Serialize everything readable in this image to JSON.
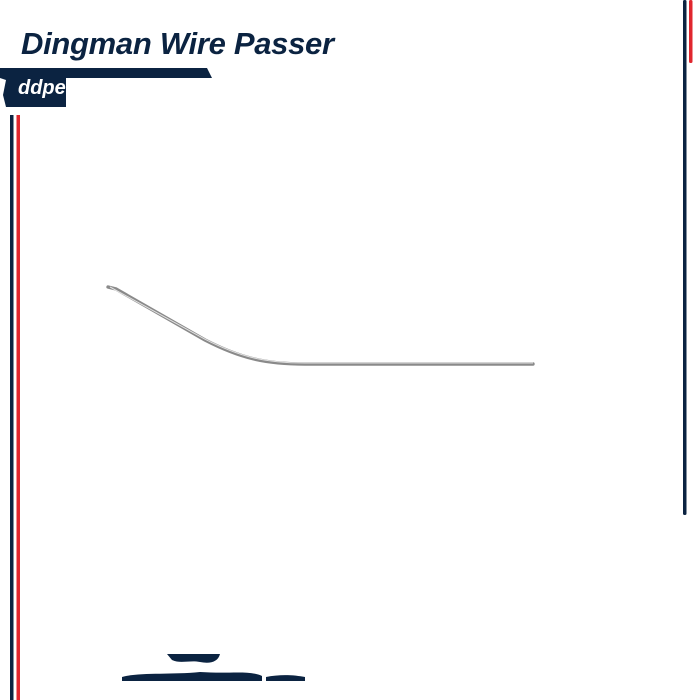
{
  "product": {
    "title": "Dingman Wire Passer",
    "brand_fragment": "ddpe"
  },
  "colors": {
    "navy": "#0b2341",
    "red": "#e0262e",
    "wire": "#9a9a9a"
  },
  "image": {
    "subject": "wire-passer-instrument",
    "footer_logo": "partially obscured logo"
  }
}
